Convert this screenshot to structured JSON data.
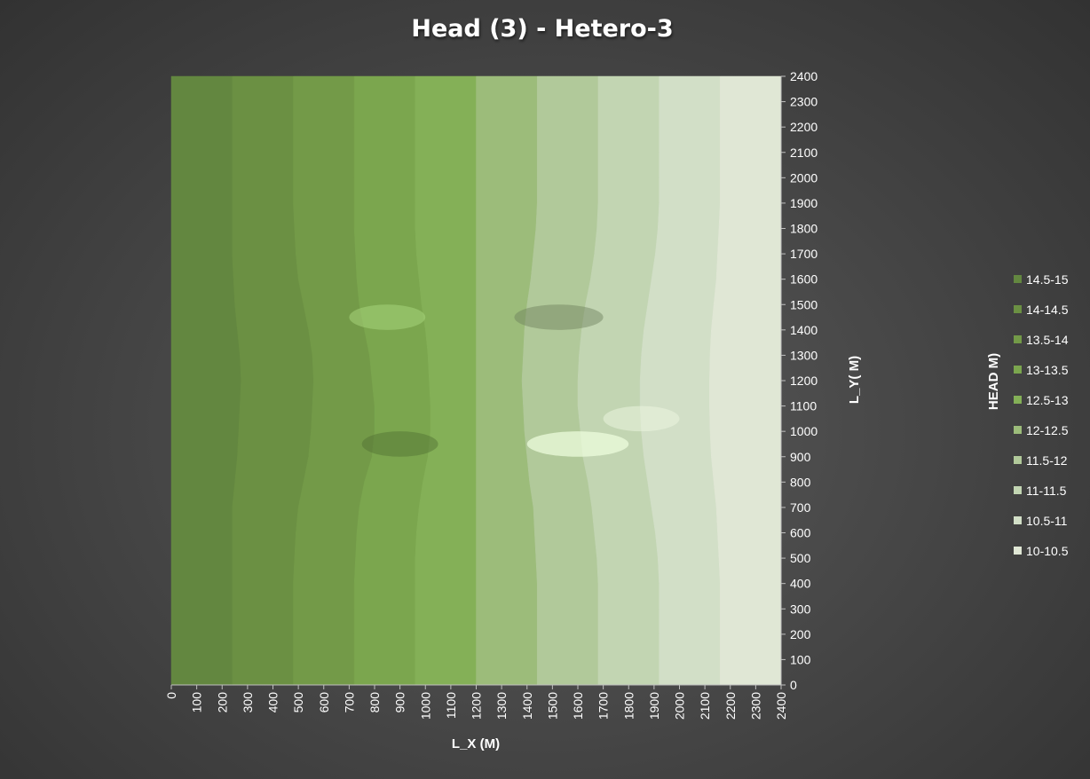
{
  "chart_data": {
    "type": "heatmap",
    "title": "Head (3) - Hetero-3",
    "xlabel": "L_X (M)",
    "ylabel": "L_Y( M)",
    "legend_title": "HEAD M)",
    "x_ticks": [
      "0",
      "100",
      "200",
      "300",
      "400",
      "500",
      "600",
      "700",
      "800",
      "900",
      "1000",
      "1100",
      "1200",
      "1300",
      "1400",
      "1500",
      "1600",
      "1700",
      "1800",
      "1900",
      "2000",
      "2100",
      "2200",
      "2300",
      "2400"
    ],
    "y_ticks": [
      "0",
      "100",
      "200",
      "300",
      "400",
      "500",
      "600",
      "700",
      "800",
      "900",
      "1000",
      "1100",
      "1200",
      "1300",
      "1400",
      "1500",
      "1600",
      "1700",
      "1800",
      "1900",
      "2000",
      "2100",
      "2200",
      "2300",
      "2400"
    ],
    "xlim": [
      0,
      2400
    ],
    "ylim": [
      0,
      2400
    ],
    "y_axis_position": "right",
    "legend_position": "right",
    "bands": [
      {
        "label": "14.5-15",
        "color": "#638740"
      },
      {
        "label": "14-14.5",
        "color": "#6b9043"
      },
      {
        "label": "13.5-14",
        "color": "#739a48"
      },
      {
        "label": "13-13.5",
        "color": "#7ba64e"
      },
      {
        "label": "12.5-13",
        "color": "#84b057"
      },
      {
        "label": "12-12.5",
        "color": "#9cbc7a"
      },
      {
        "label": "11.5-12",
        "color": "#b1c99a"
      },
      {
        "label": "11-11.5",
        "color": "#c2d5b2"
      },
      {
        "label": "10.5-11",
        "color": "#d2dfc7"
      },
      {
        "label": "10-10.5",
        "color": "#e0e7d5"
      }
    ],
    "head_grid": {
      "x": [
        0,
        200,
        400,
        600,
        800,
        1000,
        1200,
        1400,
        1600,
        1800,
        2000,
        2200,
        2400
      ],
      "y": [
        0,
        100,
        200,
        300,
        400,
        500,
        600,
        700,
        800,
        900,
        1000,
        1100,
        1200,
        1300,
        1400,
        1500,
        1600,
        1700,
        1800,
        1900,
        2000,
        2100,
        2200,
        2300,
        2400
      ],
      "boundaries_x_at_head": [
        {
          "head": 14.5,
          "x_by_y": [
            240,
            240,
            240,
            240,
            240,
            240,
            240,
            240,
            250,
            260,
            265,
            270,
            275,
            270,
            260,
            250,
            245,
            240,
            240,
            240,
            240,
            240,
            240,
            240,
            240
          ]
        },
        {
          "head": 14.0,
          "x_by_y": [
            480,
            480,
            480,
            480,
            480,
            485,
            490,
            500,
            520,
            540,
            550,
            555,
            560,
            555,
            540,
            520,
            500,
            490,
            485,
            480,
            480,
            480,
            480,
            480,
            480
          ]
        },
        {
          "head": 13.5,
          "x_by_y": [
            720,
            720,
            720,
            720,
            720,
            725,
            730,
            740,
            760,
            790,
            800,
            800,
            790,
            780,
            760,
            740,
            730,
            725,
            720,
            720,
            720,
            720,
            720,
            720,
            720
          ]
        },
        {
          "head": 13.0,
          "x_by_y": [
            960,
            960,
            960,
            960,
            960,
            960,
            965,
            975,
            990,
            1010,
            1020,
            1020,
            1015,
            1010,
            1000,
            985,
            975,
            965,
            960,
            960,
            960,
            960,
            960,
            960,
            960
          ]
        },
        {
          "head": 12.5,
          "x_by_y": [
            1200,
            1200,
            1200,
            1200,
            1200,
            1200,
            1200,
            1200,
            1200,
            1200,
            1200,
            1200,
            1200,
            1200,
            1200,
            1200,
            1200,
            1200,
            1200,
            1200,
            1200,
            1200,
            1200,
            1200,
            1200
          ]
        },
        {
          "head": 12.0,
          "x_by_y": [
            1440,
            1440,
            1440,
            1440,
            1440,
            1435,
            1430,
            1425,
            1410,
            1400,
            1390,
            1385,
            1380,
            1385,
            1390,
            1400,
            1415,
            1425,
            1435,
            1440,
            1440,
            1440,
            1440,
            1440,
            1440
          ]
        },
        {
          "head": 11.5,
          "x_by_y": [
            1680,
            1680,
            1680,
            1680,
            1680,
            1675,
            1665,
            1655,
            1640,
            1620,
            1610,
            1600,
            1600,
            1605,
            1615,
            1630,
            1650,
            1665,
            1675,
            1680,
            1680,
            1680,
            1680,
            1680,
            1680
          ]
        },
        {
          "head": 11.0,
          "x_by_y": [
            1920,
            1920,
            1920,
            1920,
            1920,
            1915,
            1905,
            1890,
            1875,
            1860,
            1850,
            1845,
            1845,
            1850,
            1860,
            1875,
            1890,
            1905,
            1915,
            1920,
            1920,
            1920,
            1920,
            1920,
            1920
          ]
        },
        {
          "head": 10.5,
          "x_by_y": [
            2160,
            2160,
            2160,
            2160,
            2160,
            2155,
            2150,
            2145,
            2135,
            2125,
            2120,
            2118,
            2118,
            2120,
            2125,
            2135,
            2145,
            2150,
            2155,
            2160,
            2160,
            2160,
            2160,
            2160,
            2160
          ]
        }
      ]
    },
    "grid": false
  }
}
